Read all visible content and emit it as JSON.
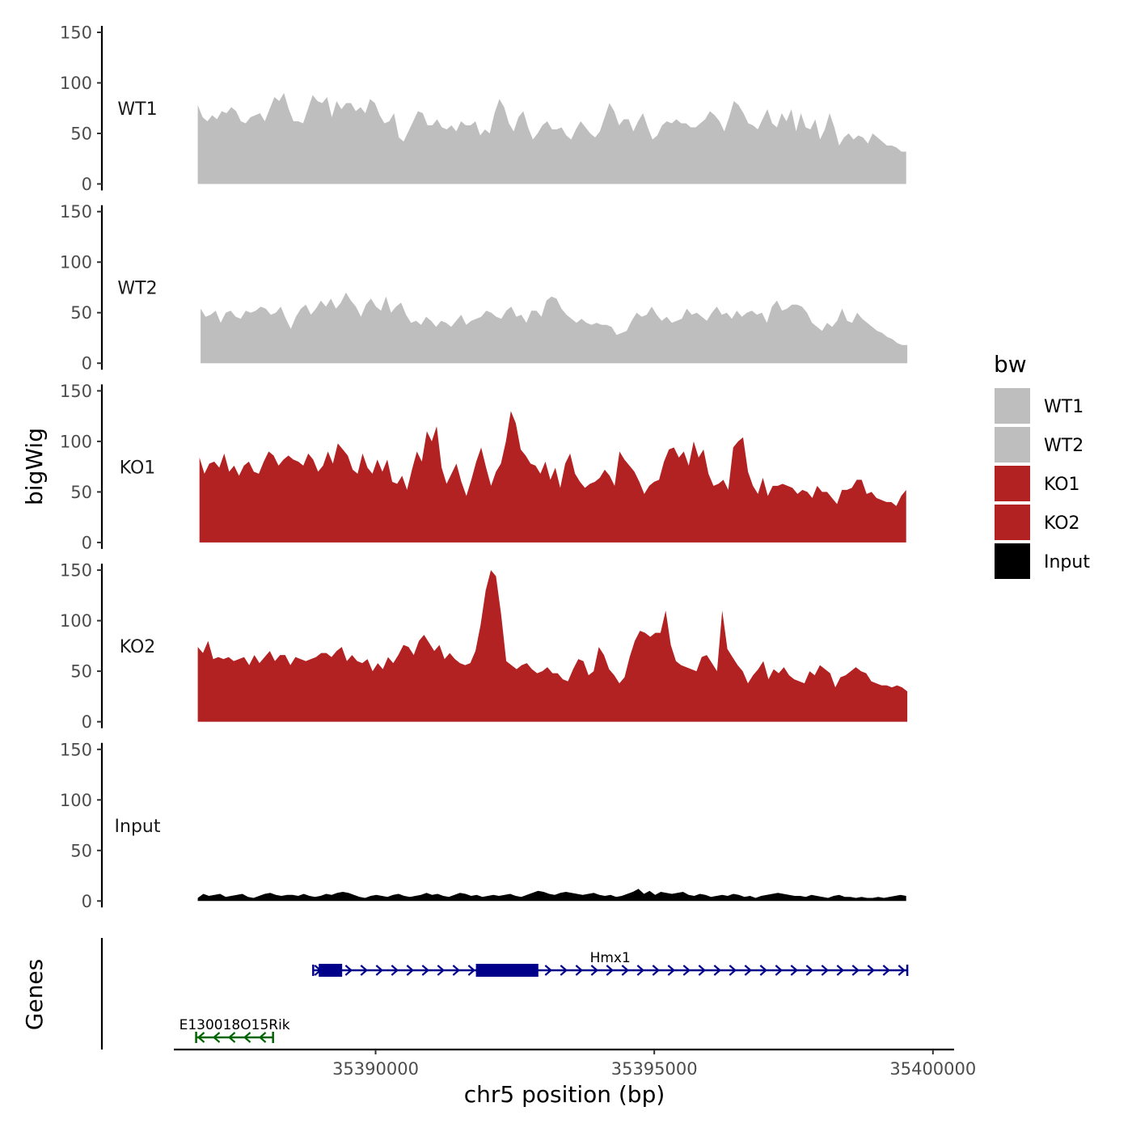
{
  "chart_data": {
    "type": "area",
    "title": "",
    "ylabel": "bigWig",
    "xlabel": "chr5 position (bp)",
    "genes_label": "Genes",
    "ylim": [
      0,
      150
    ],
    "yticks": [
      0,
      50,
      100,
      150
    ],
    "xlim": [
      35386380,
      35400380
    ],
    "xticks": [
      35390000,
      35395000,
      35400000
    ],
    "xtick_labels": [
      "35390000",
      "35395000",
      "35400000"
    ],
    "tracks": [
      {
        "name": "WT1",
        "color": "#bebebe",
        "start": 35386810,
        "end": 35399520,
        "values": [
          78,
          66,
          62,
          68,
          64,
          72,
          70,
          76,
          72,
          62,
          60,
          66,
          68,
          70,
          62,
          74,
          86,
          82,
          90,
          74,
          62,
          62,
          60,
          74,
          88,
          82,
          80,
          86,
          66,
          82,
          74,
          80,
          80,
          72,
          76,
          70,
          84,
          80,
          68,
          60,
          62,
          70,
          46,
          42,
          52,
          62,
          72,
          70,
          58,
          58,
          64,
          56,
          54,
          58,
          52,
          62,
          58,
          58,
          62,
          48,
          54,
          50,
          70,
          84,
          76,
          60,
          52,
          66,
          72,
          56,
          44,
          50,
          58,
          62,
          54,
          54,
          56,
          48,
          44,
          54,
          62,
          56,
          50,
          46,
          52,
          66,
          80,
          72,
          58,
          64,
          64,
          52,
          62,
          70,
          56,
          44,
          48,
          58,
          62,
          60,
          64,
          60,
          60,
          56,
          56,
          60,
          64,
          72,
          68,
          62,
          52,
          66,
          82,
          78,
          70,
          60,
          58,
          54,
          64,
          74,
          60,
          56,
          70,
          62,
          74,
          52,
          70,
          56,
          54,
          64,
          44,
          54,
          70,
          56,
          38,
          46,
          50,
          44,
          48,
          46,
          40,
          50,
          46,
          42,
          38,
          38,
          36,
          32,
          32
        ]
      },
      {
        "name": "WT2",
        "color": "#bebebe",
        "start": 35386860,
        "end": 35399540,
        "values": [
          54,
          46,
          48,
          52,
          40,
          50,
          52,
          46,
          44,
          52,
          50,
          52,
          56,
          54,
          48,
          50,
          56,
          44,
          34,
          46,
          54,
          58,
          48,
          54,
          62,
          56,
          64,
          54,
          60,
          70,
          62,
          56,
          46,
          58,
          64,
          56,
          52,
          66,
          50,
          56,
          60,
          48,
          40,
          42,
          38,
          46,
          42,
          36,
          42,
          40,
          36,
          42,
          48,
          38,
          42,
          44,
          46,
          52,
          50,
          46,
          44,
          52,
          56,
          46,
          48,
          40,
          52,
          52,
          46,
          62,
          66,
          64,
          54,
          48,
          44,
          40,
          44,
          40,
          38,
          40,
          38,
          38,
          36,
          28,
          30,
          32,
          42,
          50,
          46,
          48,
          56,
          48,
          42,
          46,
          40,
          42,
          44,
          54,
          48,
          50,
          46,
          42,
          50,
          56,
          48,
          50,
          44,
          52,
          46,
          50,
          52,
          48,
          50,
          40,
          56,
          62,
          52,
          54,
          58,
          58,
          56,
          50,
          40,
          36,
          32,
          40,
          36,
          42,
          54,
          42,
          40,
          50,
          44,
          40,
          36,
          32,
          30,
          26,
          24,
          20,
          18,
          18
        ]
      },
      {
        "name": "KO1",
        "color": "#b22222",
        "start": 35386840,
        "end": 35399520,
        "values": [
          84,
          68,
          78,
          80,
          74,
          88,
          70,
          76,
          66,
          76,
          80,
          70,
          68,
          80,
          90,
          86,
          76,
          82,
          86,
          82,
          80,
          76,
          88,
          82,
          70,
          76,
          90,
          78,
          98,
          92,
          86,
          72,
          68,
          88,
          74,
          68,
          82,
          70,
          82,
          60,
          58,
          66,
          52,
          72,
          90,
          80,
          110,
          100,
          115,
          74,
          58,
          68,
          78,
          60,
          46,
          62,
          80,
          94,
          74,
          56,
          70,
          78,
          100,
          130,
          118,
          92,
          86,
          78,
          76,
          68,
          80,
          62,
          74,
          54,
          78,
          88,
          68,
          60,
          54,
          58,
          60,
          64,
          72,
          66,
          56,
          90,
          82,
          76,
          70,
          60,
          48,
          56,
          60,
          62,
          80,
          92,
          94,
          84,
          90,
          76,
          100,
          84,
          92,
          68,
          56,
          58,
          62,
          52,
          94,
          100,
          104,
          70,
          56,
          48,
          64,
          46,
          56,
          56,
          58,
          56,
          54,
          48,
          52,
          50,
          44,
          56,
          50,
          50,
          44,
          38,
          52,
          52,
          54,
          62,
          62,
          48,
          50,
          44,
          42,
          40,
          40,
          36,
          46,
          52
        ]
      },
      {
        "name": "KO2",
        "color": "#b22222",
        "start": 35386810,
        "end": 35399540,
        "values": [
          74,
          68,
          80,
          62,
          64,
          62,
          64,
          60,
          62,
          64,
          56,
          66,
          58,
          64,
          70,
          60,
          66,
          66,
          56,
          64,
          62,
          60,
          62,
          64,
          68,
          68,
          64,
          70,
          74,
          60,
          66,
          60,
          58,
          62,
          50,
          58,
          52,
          64,
          58,
          66,
          76,
          74,
          66,
          80,
          86,
          78,
          70,
          76,
          62,
          68,
          62,
          58,
          56,
          58,
          70,
          96,
          130,
          150,
          144,
          106,
          60,
          56,
          52,
          56,
          58,
          52,
          48,
          50,
          54,
          48,
          48,
          42,
          40,
          52,
          62,
          60,
          46,
          50,
          74,
          66,
          52,
          46,
          38,
          44,
          64,
          80,
          90,
          88,
          84,
          88,
          88,
          110,
          76,
          60,
          56,
          54,
          52,
          50,
          64,
          66,
          58,
          50,
          110,
          72,
          64,
          56,
          50,
          38,
          46,
          52,
          60,
          42,
          52,
          48,
          54,
          46,
          42,
          40,
          38,
          50,
          46,
          56,
          52,
          48,
          34,
          44,
          46,
          50,
          54,
          50,
          48,
          40,
          38,
          36,
          36,
          34,
          36,
          34,
          30
        ]
      },
      {
        "name": "Input",
        "color": "#000000",
        "start": 35386810,
        "end": 35399520,
        "values": [
          3,
          7,
          5,
          6,
          7,
          4,
          5,
          6,
          7,
          4,
          3,
          5,
          7,
          8,
          6,
          5,
          6,
          6,
          5,
          7,
          5,
          4,
          5,
          7,
          6,
          8,
          9,
          8,
          6,
          4,
          3,
          5,
          6,
          5,
          4,
          6,
          7,
          5,
          4,
          5,
          6,
          8,
          6,
          7,
          5,
          4,
          6,
          8,
          7,
          5,
          6,
          4,
          5,
          6,
          5,
          6,
          7,
          5,
          4,
          6,
          8,
          10,
          9,
          7,
          6,
          8,
          9,
          8,
          7,
          6,
          7,
          8,
          6,
          5,
          6,
          4,
          5,
          7,
          9,
          12,
          7,
          10,
          6,
          9,
          8,
          7,
          8,
          9,
          6,
          5,
          7,
          6,
          4,
          5,
          6,
          5,
          7,
          6,
          4,
          5,
          3,
          5,
          6,
          7,
          8,
          7,
          6,
          5,
          5,
          4,
          6,
          5,
          4,
          3,
          5,
          6,
          4,
          4,
          3,
          4,
          3,
          3,
          4,
          3,
          4,
          5,
          6,
          5
        ]
      }
    ],
    "legend": {
      "title": "bw",
      "position": "right",
      "entries": [
        {
          "label": "WT1",
          "color": "#bebebe"
        },
        {
          "label": "WT2",
          "color": "#bebebe"
        },
        {
          "label": "KO1",
          "color": "#b22222"
        },
        {
          "label": "KO2",
          "color": "#b22222"
        },
        {
          "label": "Input",
          "color": "#000000"
        }
      ]
    },
    "genes": [
      {
        "name": "Hmx1",
        "strand": "+",
        "color": "#00008b",
        "start": 35388880,
        "end": 35399540,
        "exons": [
          [
            35388980,
            35389400
          ],
          [
            35391800,
            35392920
          ]
        ]
      },
      {
        "name": "E130018O15Rik",
        "strand": "-",
        "color": "#006400",
        "start": 35386780,
        "end": 35388160,
        "exons": []
      }
    ]
  }
}
